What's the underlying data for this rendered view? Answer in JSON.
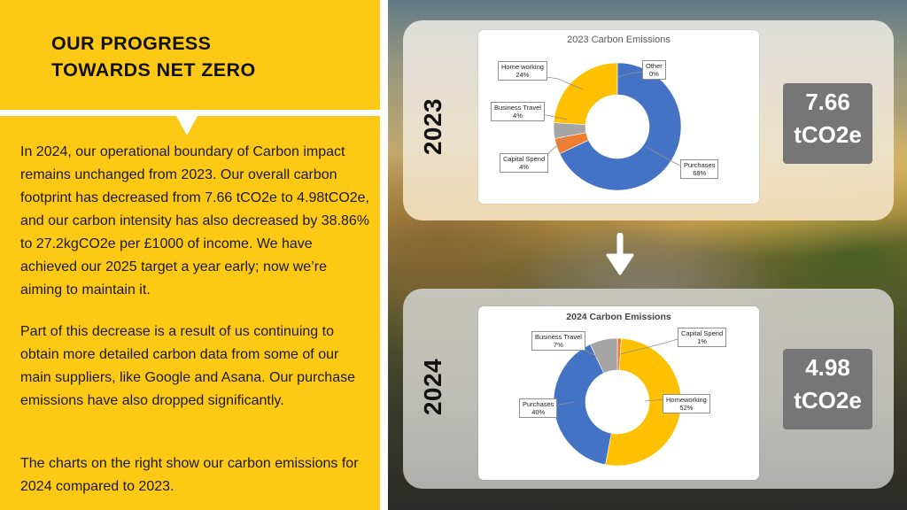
{
  "header": {
    "title_line1": "OUR PROGRESS",
    "title_line2": "TOWARDS NET ZERO"
  },
  "body": {
    "paragraphs": [
      "In 2024, our operational boundary of Carbon impact remains unchanged from 2023. Our overall carbon footprint has decreased from 7.66 tCO2e to 4.98tCO2e, and our carbon intensity has also decreased by 38.86% to 27.2kgCO2e per £1000 of income. We have achieved our 2025 target a year early; now we’re aiming to maintain it.",
      "Part of this decrease is a result of us continuing to obtain more detailed carbon data from some of our main suppliers, like Google and Asana. Our purchase emissions have also dropped significantly.",
      "The charts on the right show our carbon emissions for 2024 compared to 2023."
    ]
  },
  "colors": {
    "accent_yellow": "#FEC915",
    "purchases_blue": "#4472C4",
    "homeworking_yellow": "#FFC000",
    "business_travel_grey": "#A5A5A5",
    "capital_spend_orange": "#ED7D31",
    "stat_box_grey": "#767676"
  },
  "panels": [
    {
      "year": "2023",
      "stat_value": "7.66",
      "stat_unit": "tCO2e",
      "chart_title": "2023 Carbon Emissions",
      "callouts": [
        {
          "label": "Home working",
          "pct": "24%"
        },
        {
          "label": "Other",
          "pct": "0%"
        },
        {
          "label": "Business Travel",
          "pct": "4%"
        },
        {
          "label": "Capital Spend",
          "pct": "4%"
        },
        {
          "label": "Purchases",
          "pct": "68%"
        }
      ]
    },
    {
      "year": "2024",
      "stat_value": "4.98",
      "stat_unit": "tCO2e",
      "chart_title": "2024 Carbon Emissions",
      "callouts": [
        {
          "label": "Business Travel",
          "pct": "7%"
        },
        {
          "label": "Capital Spend",
          "pct": "1%"
        },
        {
          "label": "Purchases",
          "pct": "40%"
        },
        {
          "label": "Homeworking",
          "pct": "52%"
        }
      ]
    }
  ],
  "arrow": {
    "icon": "arrow-down-icon"
  },
  "chart_data": [
    {
      "type": "pie",
      "subtype": "donut",
      "title": "2023 Carbon Emissions",
      "categories": [
        "Purchases",
        "Capital Spend",
        "Business Travel",
        "Home working",
        "Other"
      ],
      "values": [
        68,
        4,
        4,
        24,
        0
      ],
      "unit": "%",
      "colors": [
        "#4472C4",
        "#ED7D31",
        "#A5A5A5",
        "#FFC000",
        "#5B9BD5"
      ],
      "total": "7.66 tCO2e",
      "legend_position": "callout labels"
    },
    {
      "type": "pie",
      "subtype": "donut",
      "title": "2024 Carbon Emissions",
      "categories": [
        "Capital Spend",
        "Homeworking",
        "Purchases",
        "Business Travel"
      ],
      "values": [
        1,
        52,
        40,
        7
      ],
      "unit": "%",
      "colors": [
        "#ED7D31",
        "#FFC000",
        "#4472C4",
        "#A5A5A5"
      ],
      "total": "4.98 tCO2e",
      "legend_position": "callout labels"
    }
  ]
}
